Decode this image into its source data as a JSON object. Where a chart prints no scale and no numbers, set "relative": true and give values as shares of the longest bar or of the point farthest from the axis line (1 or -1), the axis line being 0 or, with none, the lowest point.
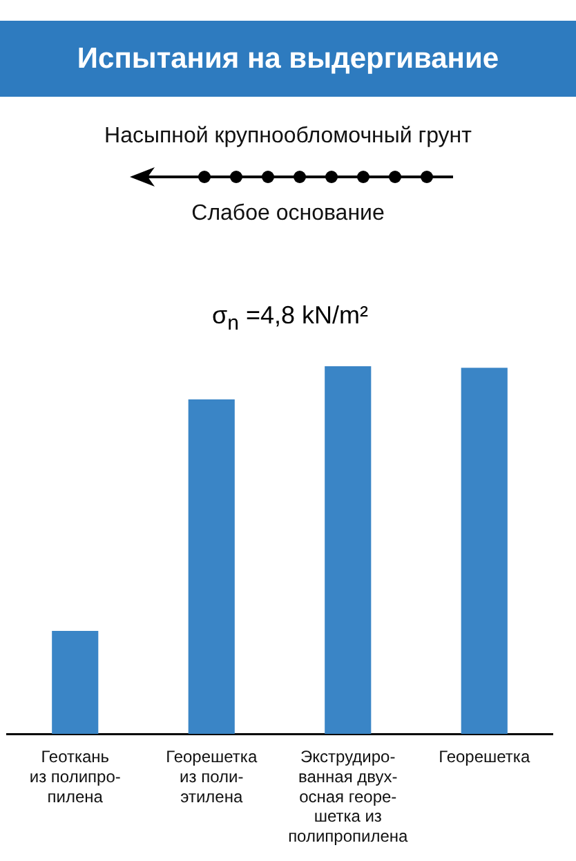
{
  "chart_data": {
    "type": "bar",
    "title": "Испытания на выдергивание",
    "subtitle": "σ$_{n}$ =4,8 kN/m²",
    "annotations": [
      "Насыпной крупнообломочный грунт",
      "Слабое основание"
    ],
    "categories": [
      "Геоткань\nиз полипро-\nпилена",
      "Георешетка\nиз поли-\nэтилена",
      "Экструдиро-\nванная двух-\nосная георе-\nшетка из\nполипропилена",
      "Георешетка"
    ],
    "values": [
      0.28,
      0.91,
      1,
      0.996
    ],
    "color": "#3a85c6",
    "relative": true,
    "grid": false,
    "legend": false
  }
}
